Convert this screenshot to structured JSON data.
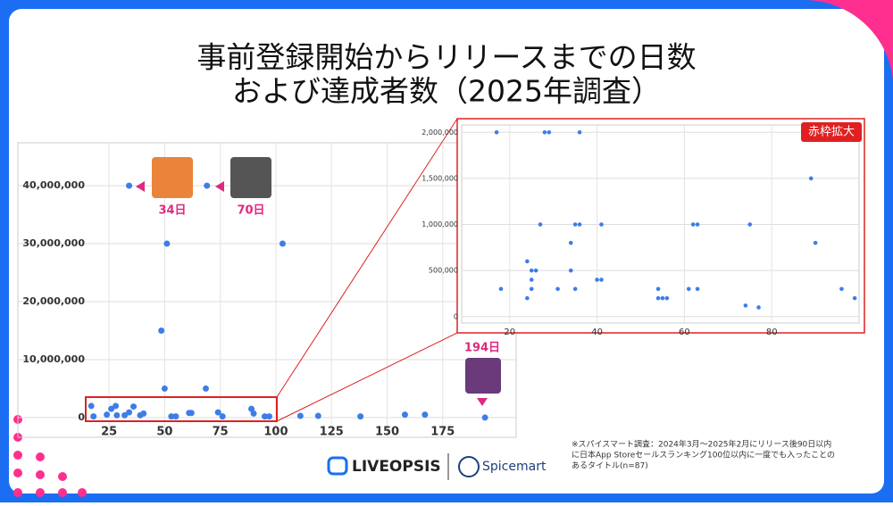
{
  "title": [
    "事前登録開始からリリースまでの日数",
    "および達成者数（2025年調査）"
  ],
  "chart_data": [
    {
      "type": "scatter",
      "color": "#3d7ee6",
      "grid": true,
      "x": [
        34,
        69,
        51,
        103,
        48.5,
        50,
        68.5,
        89,
        194,
        17,
        18,
        24,
        26,
        28,
        28.5,
        32,
        34,
        36,
        39,
        40.5,
        53,
        55,
        61,
        62,
        74,
        76,
        90,
        95,
        97,
        111,
        119,
        138,
        158,
        167
      ],
      "values": [
        40000000,
        40000000,
        30000000,
        30000000,
        15000000,
        5000000,
        5000000,
        1500000,
        0,
        2000000,
        200000,
        500000,
        1500000,
        2000000,
        400000,
        400000,
        900000,
        1900000,
        400000,
        700000,
        200000,
        200000,
        800000,
        800000,
        900000,
        200000,
        700000,
        200000,
        200000,
        300000,
        300000,
        200000,
        500000,
        500000
      ],
      "xlim": [
        -16,
        208
      ],
      "xticks": [
        25,
        50,
        75,
        100,
        125,
        150,
        175
      ],
      "ylim": [
        -3400000,
        47400000
      ],
      "yticks": [
        0,
        {
          "value": 10000000,
          "label": "10,000,000"
        },
        {
          "value": 20000000,
          "label": "20,000,000"
        },
        {
          "value": 30000000,
          "label": "30,000,000"
        },
        {
          "value": 40000000,
          "label": "40,000,000"
        }
      ],
      "annotations": [
        "34日",
        "70日",
        "194日"
      ]
    },
    {
      "type": "scatter",
      "color": "#3d7ee6",
      "grid": true,
      "x": [
        17,
        28,
        29,
        36,
        89,
        27,
        35,
        36,
        41,
        62,
        63,
        75,
        90,
        34,
        24,
        25,
        26,
        34,
        25,
        40,
        41,
        18,
        25,
        31,
        35,
        54,
        61,
        63,
        96,
        24,
        54,
        55,
        56,
        99,
        74,
        77
      ],
      "values": [
        2000000,
        2000000,
        2000000,
        2000000,
        1500000,
        1000000,
        1000000,
        1000000,
        1000000,
        1000000,
        1000000,
        1000000,
        800000,
        800000,
        600000,
        500000,
        500000,
        500000,
        400000,
        400000,
        400000,
        300000,
        300000,
        300000,
        300000,
        300000,
        300000,
        300000,
        300000,
        200000,
        200000,
        200000,
        200000,
        200000,
        120000,
        100000
      ],
      "xlim": [
        9,
        100
      ],
      "xticks": [
        20,
        40,
        60,
        80
      ],
      "ylim": [
        -70000,
        2080000
      ],
      "yticks": [
        0,
        {
          "value": 500000,
          "label": "500,000"
        },
        {
          "value": 1000000,
          "label": "1,000,000"
        },
        {
          "value": 1500000,
          "label": "1,500,000"
        },
        {
          "value": 2000000,
          "label": "2,000,000"
        }
      ],
      "badge": "赤枠拡大"
    }
  ],
  "footnote": [
    "※スパイスマート調査：2024年3月〜2025年2月にリリース後90日以内",
    "に日本App Storeセールスランキング100位以内に一度でも入ったことの",
    "あるタイトル(n=87)"
  ],
  "logos": [
    "LIVEOPSIS",
    "Spicemart"
  ]
}
